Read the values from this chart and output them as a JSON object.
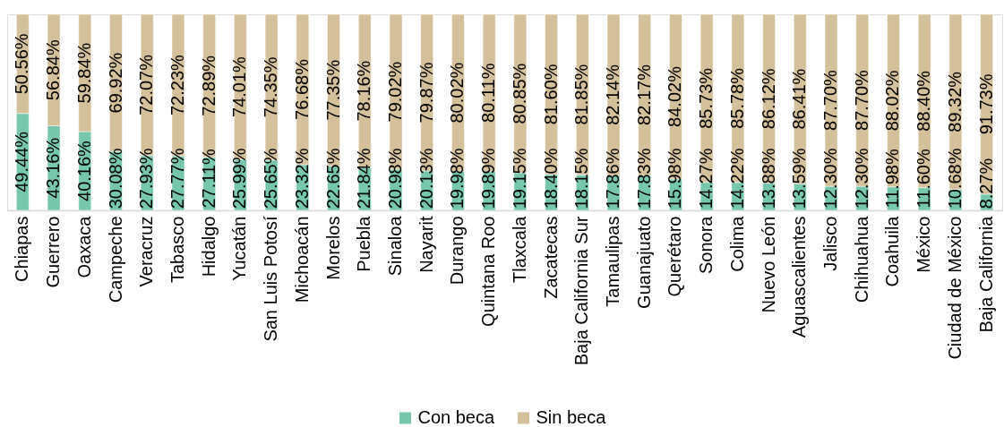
{
  "chart_data": {
    "type": "bar",
    "stacked": true,
    "ylim": [
      0,
      100
    ],
    "tick_labels": "x",
    "legend": "bottom",
    "categories": [
      "Chiapas",
      "Guerrero",
      "Oaxaca",
      "Campeche",
      "Veracruz",
      "Tabasco",
      "Hidalgo",
      "Yucatán",
      "San Luis Potosí",
      "Michoacán",
      "Morelos",
      "Puebla",
      "Sinaloa",
      "Nayarit",
      "Durango",
      "Quintana Roo",
      "Tlaxcala",
      "Zacatecas",
      "Baja California Sur",
      "Tamaulipas",
      "Guanajuato",
      "Querétaro",
      "Sonora",
      "Colima",
      "Nuevo León",
      "Aguascalientes",
      "Jalisco",
      "Chihuahua",
      "Coahuila",
      "México",
      "Ciudad de México",
      "Baja California"
    ],
    "series": [
      {
        "name": "Con beca",
        "color": "#76c7ab",
        "values": [
          49.44,
          43.16,
          40.16,
          30.08,
          27.93,
          27.77,
          27.11,
          25.99,
          25.65,
          23.32,
          22.65,
          21.84,
          20.98,
          20.13,
          19.98,
          19.89,
          19.15,
          18.4,
          18.15,
          17.86,
          17.83,
          15.98,
          14.27,
          14.22,
          13.88,
          13.59,
          12.3,
          12.3,
          11.98,
          11.6,
          10.68,
          8.27
        ],
        "value_labels": [
          "49.44%",
          "43.16%",
          "40.16%",
          "30.08%",
          "27.93%",
          "27.77%",
          "27.11%",
          "25.99%",
          "25.65%",
          "23.32%",
          "22.65%",
          "21.84%",
          "20.98%",
          "20.13%",
          "19.98%",
          "19.89%",
          "19.15%",
          "18.40%",
          "18.15%",
          "17.86%",
          "17.83%",
          "15.98%",
          "14.27%",
          "14.22%",
          "13.88%",
          "13.59%",
          "12.30%",
          "12.30%",
          "11.98%",
          "11.60%",
          "10.68%",
          "8.27%"
        ]
      },
      {
        "name": "Sin beca",
        "color": "#d4c19b",
        "values": [
          50.56,
          56.84,
          59.84,
          69.92,
          72.07,
          72.23,
          72.89,
          74.01,
          74.35,
          76.68,
          77.35,
          78.16,
          79.02,
          79.87,
          80.02,
          80.11,
          80.85,
          81.6,
          81.85,
          82.14,
          82.17,
          84.02,
          85.73,
          85.78,
          86.12,
          86.41,
          87.7,
          87.7,
          88.02,
          88.4,
          89.32,
          91.73
        ],
        "value_labels": [
          "50.56%",
          "56.84%",
          "59.84%",
          "69.92%",
          "72.07%",
          "72.23%",
          "72.89%",
          "74.01%",
          "74.35%",
          "76.68%",
          "77.35%",
          "78.16%",
          "79.02%",
          "79.87%",
          "80.02%",
          "80.11%",
          "80.85%",
          "81.60%",
          "81.85%",
          "82.14%",
          "82.17%",
          "84.02%",
          "85.73%",
          "85.78%",
          "86.12%",
          "86.41%",
          "87.70%",
          "87.70%",
          "88.02%",
          "88.40%",
          "89.32%",
          "91.73%"
        ]
      }
    ]
  }
}
